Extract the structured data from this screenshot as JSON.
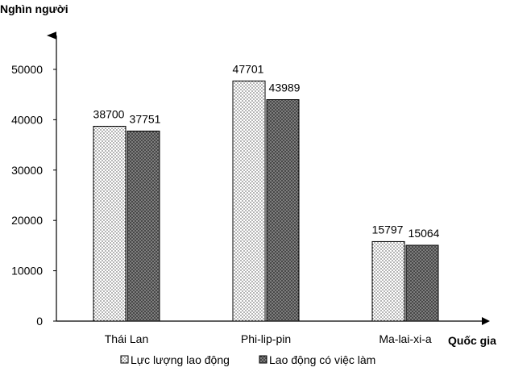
{
  "chart_data": {
    "type": "bar",
    "ylabel": "Nghìn người",
    "xlabel": "Quốc gia",
    "categories": [
      "Thái Lan",
      "Phi-lip-pin",
      "Ma-lai-xi-a"
    ],
    "series": [
      {
        "name": "Lực lượng lao động",
        "values": [
          38700,
          47701,
          15797
        ],
        "pattern": "dots",
        "fill": "#ffffff"
      },
      {
        "name": "Lao động có việc làm",
        "values": [
          37751,
          43989,
          15064
        ],
        "pattern": "crosshatch",
        "fill": "#555555"
      }
    ],
    "yticks": [
      0,
      10000,
      20000,
      30000,
      40000,
      50000
    ],
    "ylim": [
      0,
      50000
    ],
    "grid": false,
    "legend_position": "bottom"
  }
}
